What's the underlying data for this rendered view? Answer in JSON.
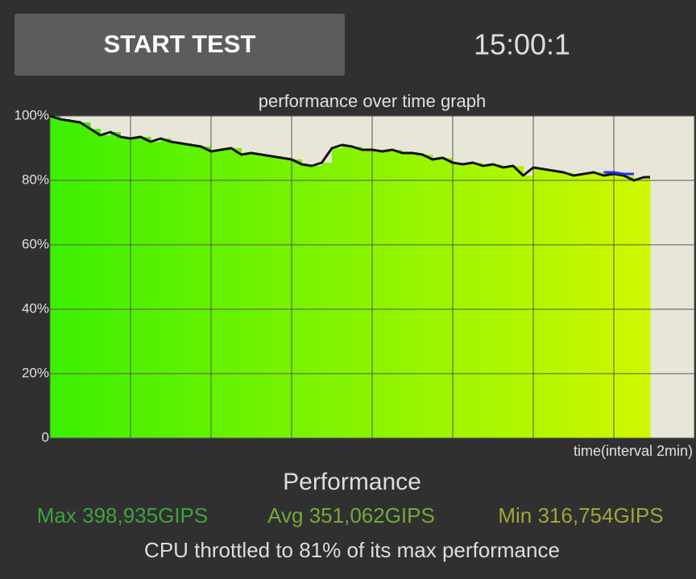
{
  "button": {
    "label": "START TEST"
  },
  "timer": "15:00:1",
  "chart_data": {
    "type": "line",
    "title": "performance over time graph",
    "x_label": "time(interval 2min)",
    "xlim": [
      0,
      16
    ],
    "xgrid": [
      0,
      2,
      4,
      6,
      8,
      10,
      12,
      14,
      16
    ],
    "ylim": [
      0,
      100
    ],
    "yticks": [
      0,
      {
        "value": 20,
        "label": "20%"
      },
      {
        "value": 40,
        "label": "40%"
      },
      {
        "value": 60,
        "label": "60%"
      },
      {
        "value": 80,
        "label": "80%"
      },
      {
        "value": 100,
        "label": "100%"
      }
    ],
    "grid": true,
    "background": "#e8e6d6",
    "fill_colors": [
      "#3cf000",
      "#d2f800"
    ],
    "series": [
      {
        "color": "#111111",
        "x": [
          0,
          0.25,
          0.5,
          0.75,
          1,
          1.25,
          1.5,
          1.75,
          2,
          2.25,
          2.5,
          2.75,
          3,
          3.25,
          3.5,
          3.75,
          4,
          4.25,
          4.5,
          4.75,
          5,
          5.25,
          5.5,
          5.75,
          6,
          6.25,
          6.5,
          6.75,
          7,
          7.25,
          7.5,
          7.75,
          8,
          8.25,
          8.5,
          8.75,
          9,
          9.25,
          9.5,
          9.75,
          10,
          10.25,
          10.5,
          10.75,
          11,
          11.25,
          11.5,
          11.75,
          12,
          12.25,
          12.5,
          12.75,
          13,
          13.25,
          13.5,
          13.75,
          14,
          14.25,
          14.5,
          14.75,
          14.9
        ],
        "values": [
          100,
          99,
          98.5,
          98,
          96,
          94,
          95,
          93.5,
          93,
          93.5,
          92,
          93,
          92,
          91.5,
          91,
          90.5,
          89,
          89.5,
          90,
          88,
          88.5,
          88,
          87.5,
          87,
          86.5,
          85,
          84.5,
          85.5,
          90,
          91,
          90.5,
          89.5,
          89.5,
          89,
          89.5,
          88.5,
          88.5,
          88,
          86.5,
          87,
          85.5,
          85,
          85.5,
          84.5,
          85,
          84,
          84.5,
          81.5,
          84,
          83.5,
          83,
          82.5,
          81.5,
          82,
          82.5,
          81.5,
          82,
          81.5,
          80,
          81,
          81
        ]
      },
      {
        "color": "#2233ee",
        "x": [
          13.75,
          14,
          14.25,
          14.5
        ],
        "values": [
          82.5,
          82.5,
          82,
          82
        ]
      }
    ]
  },
  "summary": {
    "title": "Performance",
    "max": {
      "text": "Max 398,935GIPS",
      "color": "#3fa23f"
    },
    "avg": {
      "text": "Avg 351,062GIPS",
      "color": "#72a83a"
    },
    "min": {
      "text": "Min 316,754GIPS",
      "color": "#a2a43a"
    },
    "note": "CPU throttled to 81% of its max performance"
  }
}
